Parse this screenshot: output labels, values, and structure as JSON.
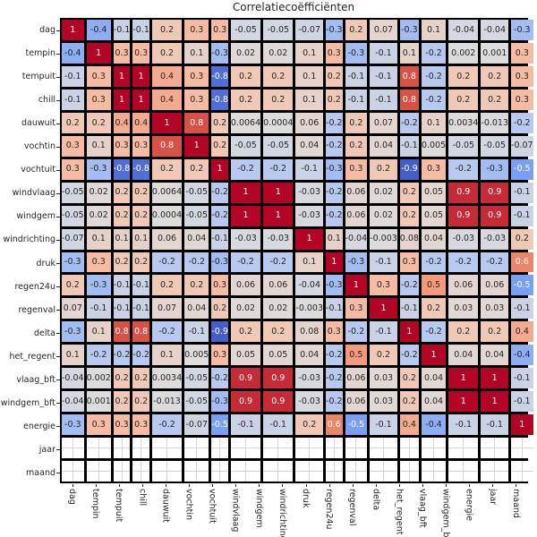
{
  "title": "Correlatiecoëfficiënten",
  "chart_data": {
    "type": "heatmap",
    "title": "Correlatiecoëfficiënten",
    "colormap": "coolwarm",
    "vmin": -1,
    "vmax": 1,
    "grid_line_color": "#000000",
    "nan_cell_color": "#ffffff",
    "legend_position": "none",
    "variables": [
      "dag",
      "tempin",
      "tempuit",
      "chill",
      "dauwuit",
      "vochtin",
      "vochtuit",
      "windvlaag",
      "windgem",
      "windrichting",
      "druk",
      "regen24u",
      "regenval",
      "delta",
      "het_regent",
      "vlaag_bft",
      "windgem_bft",
      "energie",
      "jaar",
      "maand"
    ],
    "matrix": [
      [
        "1",
        "-0.4",
        "-0.1",
        "-0.1",
        "0.2",
        "0.3",
        "0.3",
        "-0.05",
        "-0.05",
        "-0.07",
        "-0.3",
        "0.2",
        "0.07",
        "-0.3",
        "0.1",
        "-0.04",
        "-0.04",
        "-0.3",
        null,
        null
      ],
      [
        "-0.4",
        "1",
        "0.3",
        "0.3",
        "0.2",
        "0.1",
        "-0.3",
        "0.02",
        "0.02",
        "0.1",
        "0.3",
        "-0.3",
        "-0.1",
        "0.1",
        "-0.2",
        "0.002",
        "0.001",
        "0.3",
        null,
        null
      ],
      [
        "-0.1",
        "0.3",
        "1",
        "1",
        "0.4",
        "0.3",
        "-0.8",
        "0.2",
        "0.2",
        "0.1",
        "0.2",
        "-0.1",
        "-0.1",
        "0.8",
        "-0.2",
        "0.2",
        "0.2",
        "0.3",
        null,
        null
      ],
      [
        "-0.1",
        "0.3",
        "1",
        "1",
        "0.4",
        "0.3",
        "-0.8",
        "0.2",
        "0.2",
        "0.1",
        "0.2",
        "-0.1",
        "-0.1",
        "0.8",
        "-0.2",
        "0.2",
        "0.2",
        "0.3",
        null,
        null
      ],
      [
        "0.2",
        "0.2",
        "0.4",
        "0.4",
        "1",
        "0.8",
        "0.2",
        "0.0064",
        "0.0004",
        "0.06",
        "-0.2",
        "0.2",
        "0.07",
        "-0.2",
        "0.1",
        "0.0034",
        "-0.013",
        "-0.2",
        null,
        null
      ],
      [
        "0.3",
        "0.1",
        "0.3",
        "0.3",
        "0.8",
        "1",
        "0.2",
        "-0.05",
        "-0.05",
        "0.04",
        "-0.2",
        "0.2",
        "0.04",
        "-0.1",
        "0.005",
        "-0.05",
        "-0.05",
        "-0.07",
        null,
        null
      ],
      [
        "0.3",
        "-0.3",
        "-0.8",
        "-0.8",
        "0.2",
        "0.2",
        "1",
        "-0.2",
        "-0.2",
        "-0.1",
        "-0.3",
        "0.3",
        "0.2",
        "-0.9",
        "0.3",
        "-0.2",
        "-0.3",
        "-0.5",
        null,
        null
      ],
      [
        "-0.05",
        "0.02",
        "0.2",
        "0.2",
        "0.0064",
        "-0.05",
        "-0.2",
        "1",
        "1",
        "-0.03",
        "-0.2",
        "0.06",
        "0.02",
        "0.2",
        "0.05",
        "0.9",
        "0.9",
        "-0.1",
        null,
        null
      ],
      [
        "-0.05",
        "0.02",
        "0.2",
        "0.2",
        "0.0004",
        "-0.05",
        "-0.2",
        "1",
        "1",
        "-0.03",
        "-0.2",
        "0.06",
        "0.02",
        "0.2",
        "0.05",
        "0.9",
        "0.9",
        "-0.1",
        null,
        null
      ],
      [
        "-0.07",
        "0.1",
        "0.1",
        "0.1",
        "0.06",
        "0.04",
        "-0.1",
        "-0.03",
        "-0.03",
        "1",
        "0.1",
        "-0.04",
        "-0.003",
        "0.08",
        "0.04",
        "-0.03",
        "-0.03",
        "0.2",
        null,
        null
      ],
      [
        "-0.3",
        "0.3",
        "0.2",
        "0.2",
        "-0.2",
        "-0.2",
        "-0.3",
        "-0.2",
        "-0.2",
        "0.1",
        "1",
        "-0.3",
        "-0.1",
        "0.3",
        "-0.2",
        "-0.2",
        "-0.2",
        "0.6",
        null,
        null
      ],
      [
        "0.2",
        "-0.3",
        "-0.1",
        "-0.1",
        "0.2",
        "0.2",
        "0.3",
        "0.06",
        "0.06",
        "-0.04",
        "-0.3",
        "1",
        "0.3",
        "-0.2",
        "0.5",
        "0.06",
        "0.06",
        "-0.5",
        null,
        null
      ],
      [
        "0.07",
        "-0.1",
        "-0.1",
        "-0.1",
        "0.07",
        "0.04",
        "0.2",
        "0.02",
        "0.02",
        "-0.003",
        "-0.1",
        "0.3",
        "1",
        "-0.1",
        "0.2",
        "0.03",
        "0.03",
        "-0.1",
        null,
        null
      ],
      [
        "-0.3",
        "0.1",
        "0.8",
        "0.8",
        "-0.2",
        "-0.1",
        "-0.9",
        "0.2",
        "0.2",
        "0.08",
        "0.3",
        "-0.2",
        "-0.1",
        "1",
        "-0.2",
        "0.2",
        "0.2",
        "0.4",
        null,
        null
      ],
      [
        "0.1",
        "-0.2",
        "-0.2",
        "-0.2",
        "0.1",
        "0.005",
        "0.3",
        "0.05",
        "0.05",
        "0.04",
        "-0.2",
        "0.5",
        "0.2",
        "-0.2",
        "1",
        "0.04",
        "0.04",
        "-0.4",
        null,
        null
      ],
      [
        "-0.04",
        "0.002",
        "0.2",
        "0.2",
        "0.0034",
        "-0.05",
        "-0.2",
        "0.9",
        "0.9",
        "-0.03",
        "-0.2",
        "0.06",
        "0.03",
        "0.2",
        "0.04",
        "1",
        "1",
        "-0.1",
        null,
        null
      ],
      [
        "-0.04",
        "0.001",
        "0.2",
        "0.2",
        "-0.013",
        "-0.05",
        "-0.3",
        "0.9",
        "0.9",
        "-0.03",
        "-0.2",
        "0.06",
        "0.03",
        "0.2",
        "0.04",
        "1",
        "1",
        "-0.1",
        null,
        null
      ],
      [
        "-0.3",
        "0.3",
        "0.3",
        "0.3",
        "-0.2",
        "-0.07",
        "-0.5",
        "-0.1",
        "-0.1",
        "0.2",
        "0.6",
        "-0.5",
        "-0.1",
        "0.4",
        "-0.4",
        "-0.1",
        "-0.1",
        "1",
        null,
        null
      ],
      [
        null,
        null,
        null,
        null,
        null,
        null,
        null,
        null,
        null,
        null,
        null,
        null,
        null,
        null,
        null,
        null,
        null,
        null,
        null,
        null
      ],
      [
        null,
        null,
        null,
        null,
        null,
        null,
        null,
        null,
        null,
        null,
        null,
        null,
        null,
        null,
        null,
        null,
        null,
        null,
        null,
        null
      ]
    ]
  }
}
